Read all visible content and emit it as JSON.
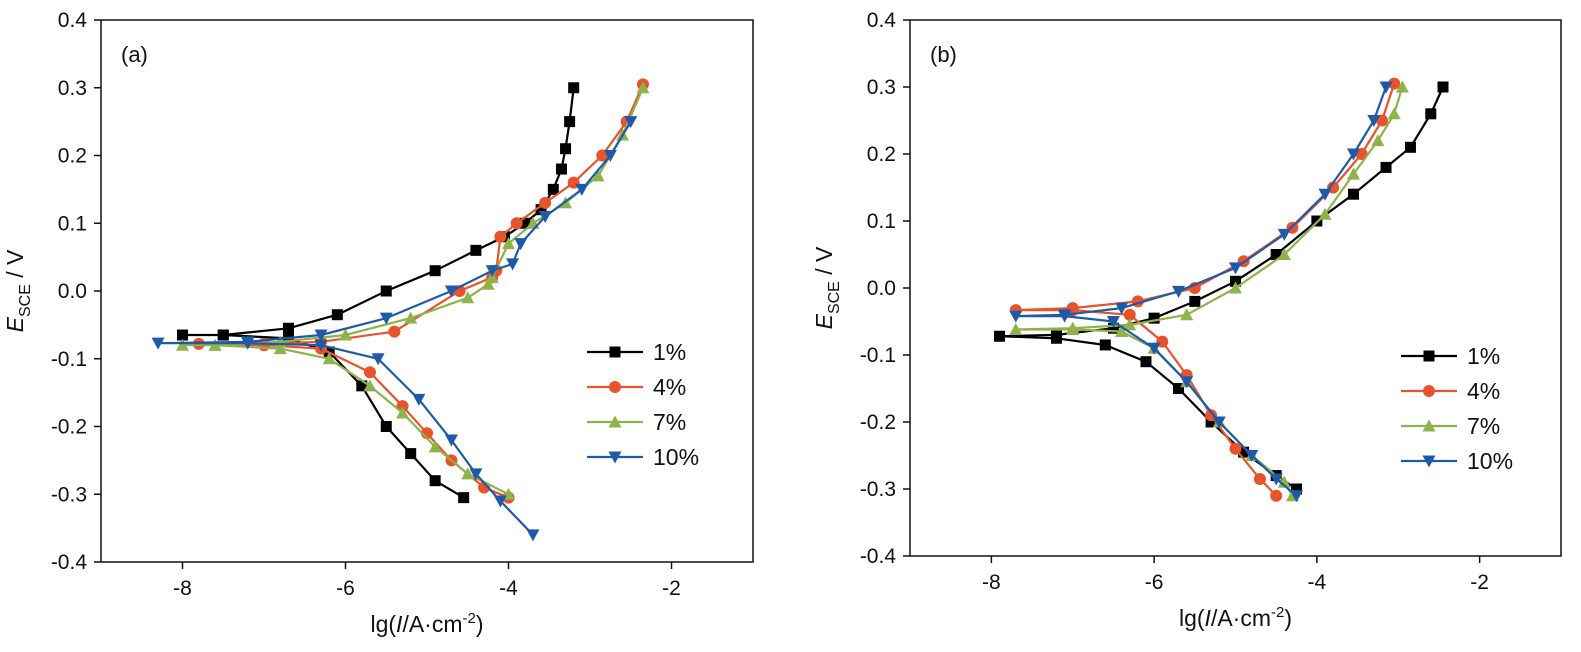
{
  "chart_data": [
    {
      "type": "line",
      "panel_label": "(a)",
      "xlabel": {
        "prefix": "lg(",
        "italic": "I",
        "suffix": "/A·cm",
        "sup": "-2",
        "close": ")"
      },
      "ylabel": {
        "italic": "E",
        "sub": "SCE",
        "suffix": " / V"
      },
      "xlim": [
        -9,
        -1
      ],
      "ylim": [
        -0.4,
        0.4
      ],
      "xticks": [
        -8,
        -6,
        -4,
        -2
      ],
      "xtick_labels": [
        "-8",
        "-6",
        "-4",
        "-2"
      ],
      "yticks": [
        -0.4,
        -0.3,
        -0.2,
        -0.1,
        0.0,
        0.1,
        0.2,
        0.3,
        0.4
      ],
      "ytick_labels": [
        "-0.4",
        "-0.3",
        "-0.2",
        "-0.1",
        "0.0",
        "0.1",
        "0.2",
        "0.3",
        "0.4"
      ],
      "legend_position": "right",
      "series": [
        {
          "name": "1%",
          "color": "#000000",
          "marker": "square",
          "x": [
            -3.2,
            -3.25,
            -3.3,
            -3.35,
            -3.45,
            -3.6,
            -3.8,
            -4.05,
            -4.4,
            -4.9,
            -5.5,
            -6.1,
            -6.7,
            -7.5,
            -8.0,
            -7.5,
            -6.7,
            -6.2,
            -5.8,
            -5.5,
            -5.2,
            -4.9,
            -4.55
          ],
          "y": [
            0.3,
            0.25,
            0.21,
            0.18,
            0.15,
            0.12,
            0.1,
            0.08,
            0.06,
            0.03,
            0.0,
            -0.035,
            -0.055,
            -0.065,
            -0.065,
            -0.065,
            -0.07,
            -0.09,
            -0.14,
            -0.2,
            -0.24,
            -0.28,
            -0.305
          ]
        },
        {
          "name": "4%",
          "color": "#e8532b",
          "marker": "circle",
          "x": [
            -2.35,
            -2.55,
            -2.85,
            -3.2,
            -3.55,
            -3.9,
            -4.1,
            -4.15,
            -4.2,
            -4.6,
            -5.4,
            -6.3,
            -7.0,
            -7.8,
            -7.0,
            -6.3,
            -5.7,
            -5.3,
            -5.0,
            -4.7,
            -4.3,
            -4.0
          ],
          "y": [
            0.305,
            0.25,
            0.2,
            0.16,
            0.13,
            0.1,
            0.08,
            0.03,
            0.02,
            0.0,
            -0.06,
            -0.075,
            -0.078,
            -0.078,
            -0.08,
            -0.085,
            -0.12,
            -0.17,
            -0.21,
            -0.25,
            -0.29,
            -0.305
          ]
        },
        {
          "name": "7%",
          "color": "#8db34a",
          "marker": "triangle-up",
          "x": [
            -2.35,
            -2.6,
            -2.9,
            -3.3,
            -3.7,
            -4.0,
            -4.2,
            -4.25,
            -4.5,
            -5.2,
            -6.0,
            -6.8,
            -7.6,
            -8.0,
            -7.6,
            -6.8,
            -6.2,
            -5.7,
            -5.3,
            -4.9,
            -4.5,
            -4.0
          ],
          "y": [
            0.3,
            0.23,
            0.17,
            0.13,
            0.1,
            0.07,
            0.02,
            0.01,
            -0.01,
            -0.04,
            -0.065,
            -0.075,
            -0.08,
            -0.08,
            -0.08,
            -0.085,
            -0.1,
            -0.14,
            -0.18,
            -0.23,
            -0.27,
            -0.3
          ]
        },
        {
          "name": "10%",
          "color": "#1f5aa8",
          "marker": "triangle-down",
          "x": [
            -2.5,
            -2.75,
            -3.1,
            -3.55,
            -3.85,
            -3.95,
            -4.2,
            -4.7,
            -5.5,
            -6.3,
            -7.2,
            -8.3,
            -7.2,
            -6.3,
            -5.6,
            -5.1,
            -4.7,
            -4.4,
            -4.1,
            -3.7
          ],
          "y": [
            0.25,
            0.2,
            0.15,
            0.11,
            0.07,
            0.04,
            0.03,
            0.0,
            -0.04,
            -0.065,
            -0.075,
            -0.077,
            -0.077,
            -0.08,
            -0.1,
            -0.16,
            -0.22,
            -0.27,
            -0.31,
            -0.36
          ]
        }
      ]
    },
    {
      "type": "line",
      "panel_label": "(b)",
      "xlabel": {
        "prefix": "lg(",
        "italic": "I",
        "suffix": "/A·cm",
        "sup": "-2",
        "close": ")"
      },
      "ylabel": {
        "italic": "E",
        "sub": "SCE",
        "suffix": " / V"
      },
      "xlim": [
        -9,
        -1
      ],
      "ylim": [
        -0.4,
        0.4
      ],
      "xticks": [
        -8,
        -6,
        -4,
        -2
      ],
      "xtick_labels": [
        "-8",
        "-6",
        "-4",
        "-2"
      ],
      "yticks": [
        -0.4,
        -0.3,
        -0.2,
        -0.1,
        0.0,
        0.1,
        0.2,
        0.3,
        0.4
      ],
      "ytick_labels": [
        "-0.4",
        "-0.3",
        "-0.2",
        "-0.1",
        "0.0",
        "0.1",
        "0.2",
        "0.3",
        "0.4"
      ],
      "legend_position": "right",
      "series": [
        {
          "name": "1%",
          "color": "#000000",
          "marker": "square",
          "x": [
            -2.45,
            -2.6,
            -2.85,
            -3.15,
            -3.55,
            -4.0,
            -4.5,
            -5.0,
            -5.5,
            -6.0,
            -6.5,
            -7.2,
            -7.9,
            -7.2,
            -6.6,
            -6.1,
            -5.7,
            -5.3,
            -4.9,
            -4.5,
            -4.25
          ],
          "y": [
            0.3,
            0.26,
            0.21,
            0.18,
            0.14,
            0.1,
            0.05,
            0.01,
            -0.02,
            -0.045,
            -0.06,
            -0.07,
            -0.072,
            -0.075,
            -0.085,
            -0.11,
            -0.15,
            -0.2,
            -0.245,
            -0.28,
            -0.3
          ]
        },
        {
          "name": "4%",
          "color": "#e8532b",
          "marker": "circle",
          "x": [
            -3.05,
            -3.2,
            -3.45,
            -3.8,
            -4.3,
            -4.9,
            -5.5,
            -6.2,
            -7.0,
            -7.7,
            -7.0,
            -6.3,
            -5.9,
            -5.6,
            -5.3,
            -5.0,
            -4.7,
            -4.5
          ],
          "y": [
            0.305,
            0.25,
            0.2,
            0.15,
            0.09,
            0.04,
            0.0,
            -0.02,
            -0.03,
            -0.033,
            -0.033,
            -0.04,
            -0.08,
            -0.13,
            -0.19,
            -0.24,
            -0.285,
            -0.31
          ]
        },
        {
          "name": "7%",
          "color": "#8db34a",
          "marker": "triangle-up",
          "x": [
            -2.95,
            -3.05,
            -3.25,
            -3.55,
            -3.9,
            -4.4,
            -5.0,
            -5.6,
            -6.3,
            -7.0,
            -7.7,
            -7.0,
            -6.4,
            -6.0,
            -5.6,
            -5.2,
            -4.8,
            -4.4,
            -4.3
          ],
          "y": [
            0.3,
            0.26,
            0.22,
            0.17,
            0.11,
            0.05,
            0.0,
            -0.04,
            -0.055,
            -0.06,
            -0.062,
            -0.062,
            -0.065,
            -0.09,
            -0.14,
            -0.2,
            -0.25,
            -0.29,
            -0.31
          ]
        },
        {
          "name": "10%",
          "color": "#1f5aa8",
          "marker": "triangle-down",
          "x": [
            -3.15,
            -3.3,
            -3.55,
            -3.9,
            -4.4,
            -5.0,
            -5.7,
            -6.4,
            -7.1,
            -7.7,
            -7.1,
            -6.5,
            -6.0,
            -5.6,
            -5.2,
            -4.8,
            -4.5,
            -4.25
          ],
          "y": [
            0.3,
            0.25,
            0.2,
            0.14,
            0.08,
            0.03,
            -0.005,
            -0.03,
            -0.04,
            -0.042,
            -0.042,
            -0.05,
            -0.09,
            -0.14,
            -0.2,
            -0.25,
            -0.285,
            -0.31
          ]
        }
      ]
    }
  ]
}
